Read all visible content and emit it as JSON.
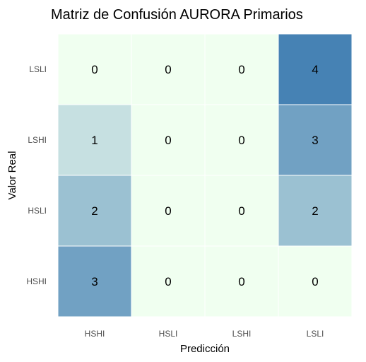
{
  "chart_data": {
    "type": "heatmap",
    "title": "Matriz de Confusión AURORA Primarios",
    "xlabel": "Predicción",
    "ylabel": "Valor Real",
    "x_categories": [
      "HSHI",
      "HSLI",
      "LSHI",
      "LSLI"
    ],
    "y_categories": [
      "HSHI",
      "HSLI",
      "LSHI",
      "LSLI"
    ],
    "y_order_top_to_bottom": [
      "LSLI",
      "LSHI",
      "HSLI",
      "HSHI"
    ],
    "matrix": {
      "LSLI": [
        0,
        0,
        0,
        4
      ],
      "LSHI": [
        1,
        0,
        0,
        3
      ],
      "HSLI": [
        2,
        0,
        0,
        2
      ],
      "HSHI": [
        3,
        0,
        0,
        0
      ]
    },
    "color_scale": {
      "low": "#f0fff0",
      "high": "#4682b4",
      "min": 0,
      "max": 4
    },
    "grid": true,
    "legend": "none"
  }
}
